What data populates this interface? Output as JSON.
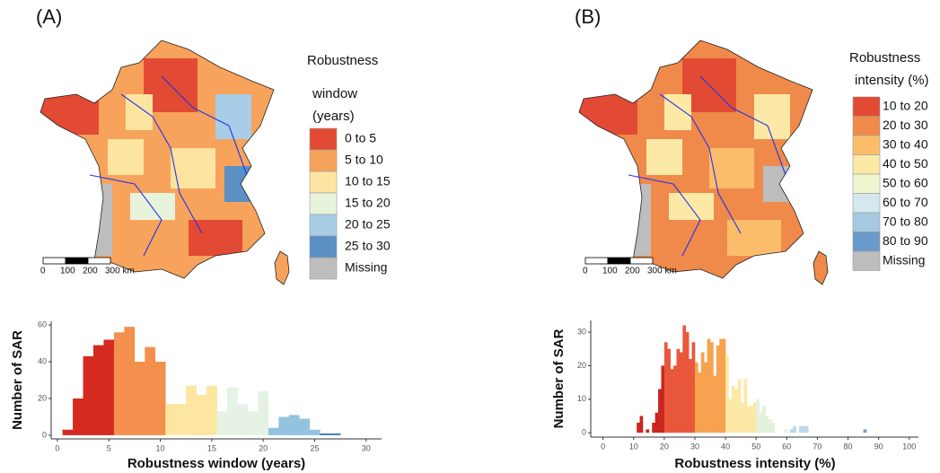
{
  "panels": [
    {
      "label": "(A)",
      "legend_title": [
        "Robustness",
        "window",
        "(years)"
      ],
      "legend_items": [
        {
          "label": "0 to 5",
          "color": "#e34a33"
        },
        {
          "label": "5 to 10",
          "color": "#f7a35c"
        },
        {
          "label": "10 to 15",
          "color": "#fde4a0"
        },
        {
          "label": "15 to 20",
          "color": "#e8f3dc"
        },
        {
          "label": "20 to 25",
          "color": "#a9cde6"
        },
        {
          "label": "25 to 30",
          "color": "#5b90c4"
        },
        {
          "label": "Missing",
          "color": "#bdbdbd"
        }
      ],
      "scale_labels": [
        "0",
        "100",
        "200",
        "300 km"
      ]
    },
    {
      "label": "(B)",
      "legend_title": [
        "Robustness",
        "intensity (%)"
      ],
      "legend_items": [
        {
          "label": "10 to 20",
          "color": "#e34a33"
        },
        {
          "label": "20 to 30",
          "color": "#f08a4b"
        },
        {
          "label": "30 to 40",
          "color": "#fbbd6a"
        },
        {
          "label": "40 to 50",
          "color": "#fde9a6"
        },
        {
          "label": "50 to 60",
          "color": "#eef6d0"
        },
        {
          "label": "60 to 70",
          "color": "#d4e8ee"
        },
        {
          "label": "70 to 80",
          "color": "#a6c9e2"
        },
        {
          "label": "80 to 90",
          "color": "#6a9bcd"
        },
        {
          "label": "Missing",
          "color": "#bdbdbd"
        }
      ],
      "scale_labels": [
        "0",
        "100",
        "200",
        "300 km"
      ]
    }
  ],
  "chart_data": [
    {
      "type": "histogram",
      "x_label": "Robustness window (years)",
      "y_label": "Number of SAR",
      "xlim": [
        -0.6,
        31.5
      ],
      "ylim": [
        -2,
        62
      ],
      "xticks": [
        0,
        5,
        10,
        15,
        20,
        25,
        30
      ],
      "yticks": [
        0,
        20,
        40,
        60
      ],
      "series": [
        {
          "color": "#d42a1f",
          "bins": [
            0.5,
            1.5,
            2.5,
            3.5,
            4.5,
            5.5
          ],
          "values": [
            3,
            20,
            43,
            49,
            52
          ]
        },
        {
          "color": "#f4904d",
          "bins": [
            5.5,
            6.5,
            7.5,
            8.5,
            9.5,
            10.5
          ],
          "values": [
            56,
            59,
            40,
            48,
            40
          ]
        },
        {
          "color": "#fde6a0",
          "bins": [
            10.5,
            11.5,
            12.5,
            13.5,
            14.5,
            15.5
          ],
          "values": [
            17,
            17,
            27,
            22,
            27
          ]
        },
        {
          "color": "#e5f2e4",
          "bins": [
            15.5,
            16.5,
            17.5,
            18.5,
            19.5,
            20.5
          ],
          "values": [
            13,
            26,
            17,
            13,
            24
          ]
        },
        {
          "color": "#93c3df",
          "bins": [
            20.5,
            21.5,
            22.5,
            23.5,
            24.5,
            25.5
          ],
          "values": [
            4,
            10,
            11,
            9,
            3
          ]
        },
        {
          "color": "#4a7fb8",
          "bins": [
            25.5,
            26.5,
            27.5
          ],
          "values": [
            1,
            1
          ]
        }
      ]
    },
    {
      "type": "histogram",
      "x_label": "Robustness intensity (%)",
      "y_label": "Number of SAR",
      "xlim": [
        -4,
        103
      ],
      "ylim": [
        -1.3,
        33.5
      ],
      "xticks": [
        0,
        10,
        20,
        30,
        40,
        50,
        60,
        70,
        80,
        90,
        100
      ],
      "yticks": [
        0,
        10,
        20,
        30
      ],
      "series": [
        {
          "color": "#c8261f",
          "bins": [
            11,
            12,
            13,
            14,
            15,
            16,
            17,
            18,
            19,
            20
          ],
          "values": [
            3,
            5,
            0,
            1,
            0,
            3,
            6,
            13,
            20
          ]
        },
        {
          "color": "#e9573a",
          "bins": [
            20,
            21,
            22,
            23,
            24,
            25,
            26,
            27,
            28,
            29,
            30
          ],
          "values": [
            27,
            25,
            19,
            20,
            25,
            24,
            32,
            30,
            22,
            27
          ]
        },
        {
          "color": "#f7a24f",
          "bins": [
            30,
            31,
            32,
            33,
            34,
            35,
            36,
            37,
            38,
            39,
            40
          ],
          "values": [
            21,
            18,
            24,
            21,
            28,
            27,
            17,
            26,
            28,
            28
          ]
        },
        {
          "color": "#fde9a6",
          "bins": [
            40,
            41,
            42,
            43,
            44,
            45,
            46,
            47,
            48,
            49,
            50
          ],
          "values": [
            23,
            10,
            14,
            13,
            16,
            9,
            16,
            8,
            8,
            9
          ]
        },
        {
          "color": "#e3f2db",
          "bins": [
            50,
            51,
            52,
            53,
            54,
            55,
            56,
            57,
            58,
            59,
            60
          ],
          "values": [
            10,
            6,
            8,
            5,
            4,
            3,
            0,
            0,
            0,
            1
          ]
        },
        {
          "color": "#bcd8ea",
          "bins": [
            60,
            61,
            62,
            63,
            64,
            65,
            66,
            67,
            68
          ],
          "values": [
            0,
            1,
            2,
            0,
            2,
            2,
            2,
            0
          ]
        },
        {
          "color": "#6d9fd0",
          "bins": [
            85,
            86
          ],
          "values": [
            1
          ]
        }
      ]
    }
  ]
}
